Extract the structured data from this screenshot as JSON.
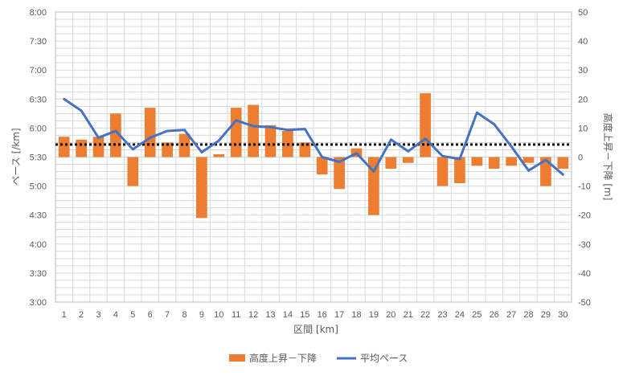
{
  "chart_data": {
    "type": "bar+line",
    "x_label": "区間 [km]",
    "y_left_label": "ペース [/km]",
    "y_right_label": "高度上昇－下降 [m]",
    "categories": [
      "1",
      "2",
      "3",
      "4",
      "5",
      "6",
      "7",
      "8",
      "9",
      "10",
      "11",
      "12",
      "13",
      "14",
      "15",
      "16",
      "17",
      "18",
      "19",
      "20",
      "21",
      "22",
      "23",
      "24",
      "25",
      "26",
      "27",
      "28",
      "29",
      "30"
    ],
    "y_left_ticks": [
      "3:00",
      "3:30",
      "4:00",
      "4:30",
      "5:00",
      "5:30",
      "6:00",
      "6:30",
      "7:00",
      "7:30",
      "8:00"
    ],
    "y_right_ticks": [
      "-50",
      "-40",
      "-30",
      "-20",
      "-10",
      "0",
      "10",
      "20",
      "30",
      "40",
      "50"
    ],
    "y_left_range_seconds": [
      180,
      480
    ],
    "y_right_range": [
      -50,
      50
    ],
    "series": [
      {
        "name": "高度上昇－下降",
        "kind": "bar",
        "axis": "right",
        "color": "#ED7D31",
        "values": [
          7,
          6,
          7,
          15,
          -10,
          17,
          5,
          8,
          -21,
          1,
          17,
          18,
          11,
          9,
          5,
          -6,
          -11,
          3,
          -20,
          -4,
          -2,
          22,
          -10,
          -9,
          -3,
          -4,
          -3,
          -2,
          -10,
          -4
        ]
      },
      {
        "name": "平均ペース",
        "kind": "line",
        "axis": "left",
        "color": "#4472C4",
        "values_seconds": [
          390,
          378,
          350,
          357,
          338,
          350,
          357,
          358,
          335,
          347,
          368,
          362,
          361,
          358,
          359,
          330,
          325,
          334,
          315,
          348,
          336,
          349,
          331,
          328,
          376,
          364,
          341,
          316,
          327,
          312
        ]
      }
    ],
    "reference_line": {
      "axis": "left",
      "value_seconds": 343,
      "style": "dotted",
      "color": "#000000"
    },
    "grid": true,
    "legend_position": "bottom"
  }
}
